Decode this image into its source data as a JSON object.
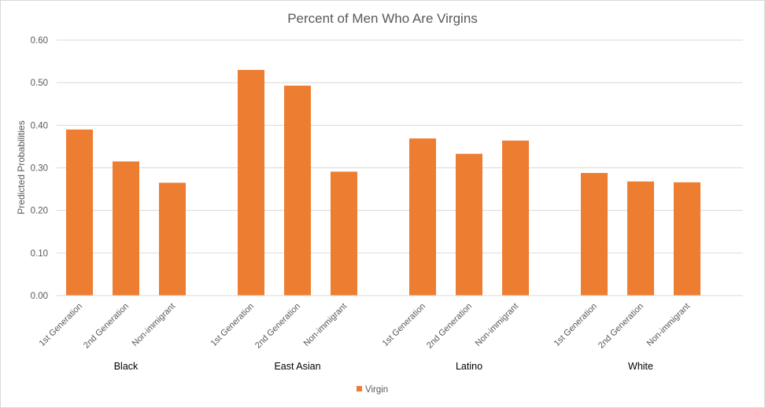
{
  "chart_data": {
    "type": "bar",
    "title": "Percent of Men Who Are Virgins",
    "ylabel": "Predicted Probabilities",
    "xlabel": "",
    "ylim": [
      0,
      0.6
    ],
    "yticks": [
      "0.00",
      "0.10",
      "0.20",
      "0.30",
      "0.40",
      "0.50",
      "0.60"
    ],
    "grid": true,
    "legend_position": "bottom",
    "groups": [
      {
        "name": "Black",
        "categories": [
          "1st Generation",
          "2nd Generation",
          "Non-immigrant"
        ],
        "values": [
          0.39,
          0.315,
          0.265
        ]
      },
      {
        "name": "East Asian",
        "categories": [
          "1st Generation",
          "2nd Generation",
          "Non-immigrant"
        ],
        "values": [
          0.53,
          0.493,
          0.291
        ]
      },
      {
        "name": "Latino",
        "categories": [
          "1st Generation",
          "2nd Generation",
          "Non-immigrant"
        ],
        "values": [
          0.369,
          0.333,
          0.364
        ]
      },
      {
        "name": "White",
        "categories": [
          "1st Generation",
          "2nd Generation",
          "Non-immigrant"
        ],
        "values": [
          0.288,
          0.268,
          0.266
        ]
      }
    ],
    "series": [
      {
        "name": "Virgin",
        "color": "#ED7D31"
      }
    ]
  }
}
